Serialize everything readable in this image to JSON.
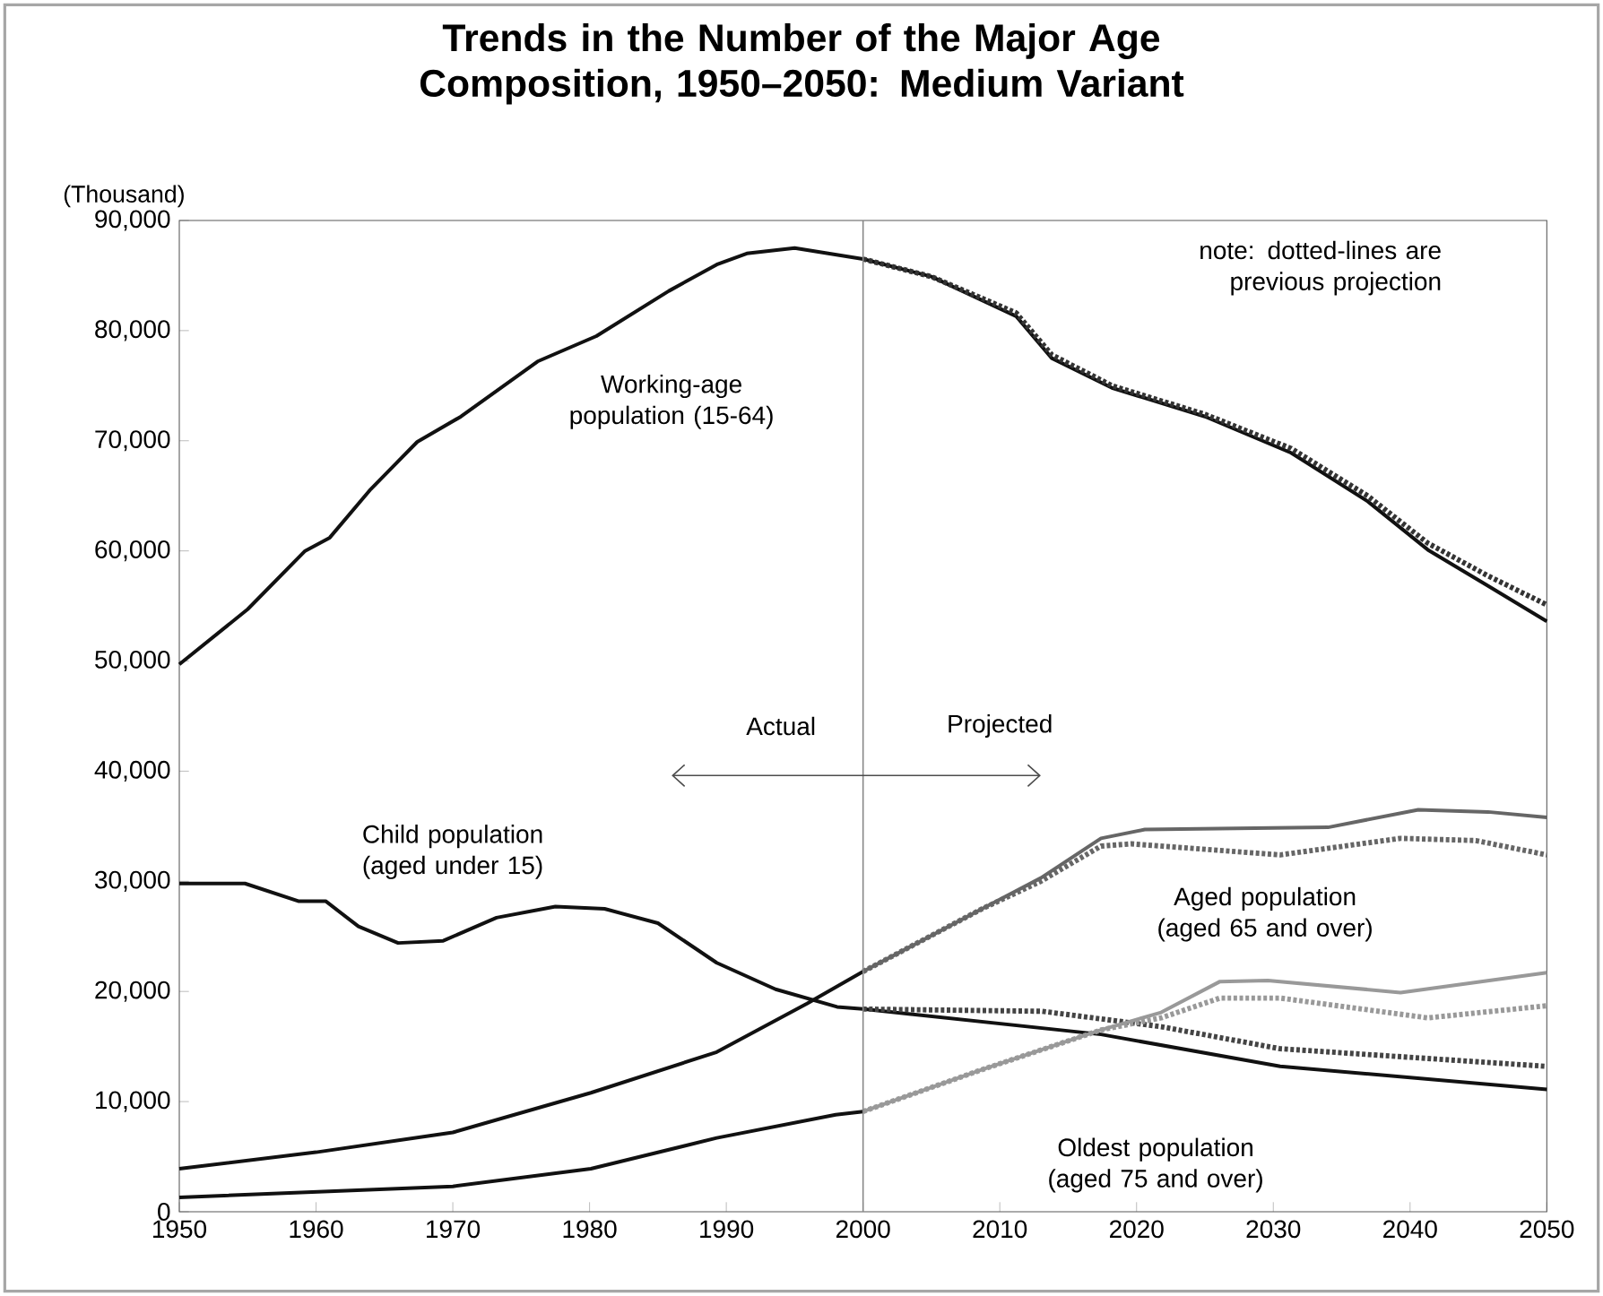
{
  "chart_data": {
    "type": "line",
    "title": "Trends in the Number of the Major Age Composition, 1950–2050: Medium Variant",
    "ylabel": "(Thousand)",
    "xlim": [
      1950,
      2050
    ],
    "xticks": [
      1950,
      1960,
      1970,
      1980,
      1990,
      2000,
      2010,
      2020,
      2030,
      2040,
      2050
    ],
    "ylim": [
      0,
      90000
    ],
    "yticks": [
      {
        "value": 0,
        "label": "0"
      },
      {
        "value": 10000,
        "label": "10,000"
      },
      {
        "value": 20000,
        "label": "20,000"
      },
      {
        "value": 30000,
        "label": "30,000"
      },
      {
        "value": 40000,
        "label": "40,000"
      },
      {
        "value": 50000,
        "label": "50,000"
      },
      {
        "value": 60000,
        "label": "60,000"
      },
      {
        "value": 70000,
        "label": "70,000"
      },
      {
        "value": 80000,
        "label": "80,000"
      },
      {
        "value": 90000,
        "label": "90,000"
      }
    ],
    "series": [
      {
        "color": "#111111",
        "line_style": "solid",
        "x": [
          1950,
          1955,
          1959.2,
          1961,
          1964,
          1967.4,
          1970.6,
          1976.2,
          1980.5,
          1985.8,
          1989.3,
          1991.5,
          1995,
          2000,
          2005,
          2011.2,
          2013.8,
          2018.2,
          2025,
          2031.3,
          2036.9,
          2041.3,
          2045.6,
          2050
        ],
        "values": [
          49700,
          54700,
          60000,
          61200,
          65600,
          69900,
          72200,
          77200,
          79500,
          83600,
          86000,
          87000,
          87500,
          86500,
          84900,
          81300,
          77500,
          74800,
          72200,
          68900,
          64500,
          60100,
          56900,
          53600
        ]
      },
      {
        "color": "#333333",
        "line_style": "dotted",
        "x": [
          2000,
          2005,
          2011.2,
          2013.8,
          2018.2,
          2025,
          2031.3,
          2036.9,
          2041.3,
          2045.6,
          2050
        ],
        "values": [
          86500,
          84900,
          81600,
          77800,
          75000,
          72400,
          69300,
          65000,
          60700,
          57800,
          55100
        ]
      },
      {
        "color": "#111111",
        "line_style": "solid",
        "x": [
          1950,
          1954.8,
          1958.7,
          1960.7,
          1963.1,
          1966,
          1969.3,
          1973.2,
          1977.5,
          1981.1,
          1985,
          1989.3,
          1993.6,
          1998.1,
          2000,
          2017.4,
          2030.5,
          2050
        ],
        "values": [
          29800,
          29800,
          28200,
          28200,
          25900,
          24400,
          24600,
          26700,
          27700,
          27500,
          26200,
          22600,
          20200,
          18600,
          18400,
          16100,
          13200,
          11100
        ]
      },
      {
        "color": "#444444",
        "line_style": "dotted",
        "x": [
          2000,
          2013.1,
          2021.8,
          2030.5,
          2050
        ],
        "values": [
          18400,
          18200,
          16800,
          14800,
          13200
        ]
      },
      {
        "color": "#111111",
        "line_style": "solid",
        "x": [
          1950,
          1960,
          1970,
          1980.1,
          1989.3,
          1995.9,
          2000
        ],
        "values": [
          3900,
          5400,
          7200,
          10800,
          14500,
          18900,
          21800
        ]
      },
      {
        "color": "#666666",
        "line_style": "solid",
        "x": [
          2000,
          2008.7,
          2013,
          2017.4,
          2020.6,
          2034,
          2040.6,
          2045.7,
          2050
        ],
        "values": [
          21800,
          27500,
          30300,
          33900,
          34700,
          34900,
          36500,
          36300,
          35800
        ]
      },
      {
        "color": "#666666",
        "line_style": "dotted",
        "x": [
          2000,
          2008.7,
          2013,
          2017.4,
          2019.6,
          2030.5,
          2039.3,
          2044.8,
          2050
        ],
        "values": [
          21800,
          27500,
          30000,
          33200,
          33400,
          32400,
          33900,
          33700,
          32400
        ]
      },
      {
        "color": "#111111",
        "line_style": "solid",
        "x": [
          1950,
          1970,
          1980.1,
          1989.3,
          1998,
          2000
        ],
        "values": [
          1300,
          2300,
          3900,
          6700,
          8800,
          9100
        ]
      },
      {
        "color": "#999999",
        "line_style": "solid",
        "x": [
          2000,
          2008.7,
          2017.4,
          2021.8,
          2026.1,
          2029.6,
          2039.3,
          2050
        ],
        "values": [
          9100,
          12900,
          16500,
          18100,
          20900,
          21000,
          19900,
          21700
        ]
      },
      {
        "color": "#999999",
        "line_style": "dotted",
        "x": [
          2000,
          2008.7,
          2017.4,
          2021.8,
          2026.1,
          2030.5,
          2041.3,
          2050
        ],
        "values": [
          9100,
          12900,
          16500,
          17600,
          19400,
          19400,
          17600,
          18700
        ]
      }
    ],
    "ref_lines": [
      {
        "axis": "x",
        "value": 2000,
        "color": "#888888"
      }
    ],
    "annotations": [
      "Working-age population (15-64)",
      "note: dotted-lines are previous projection",
      "Actual",
      "Projected",
      "Child population (aged under 15)",
      "Aged population (aged 65 and over)",
      "Oldest population (aged 75 and over)"
    ]
  }
}
